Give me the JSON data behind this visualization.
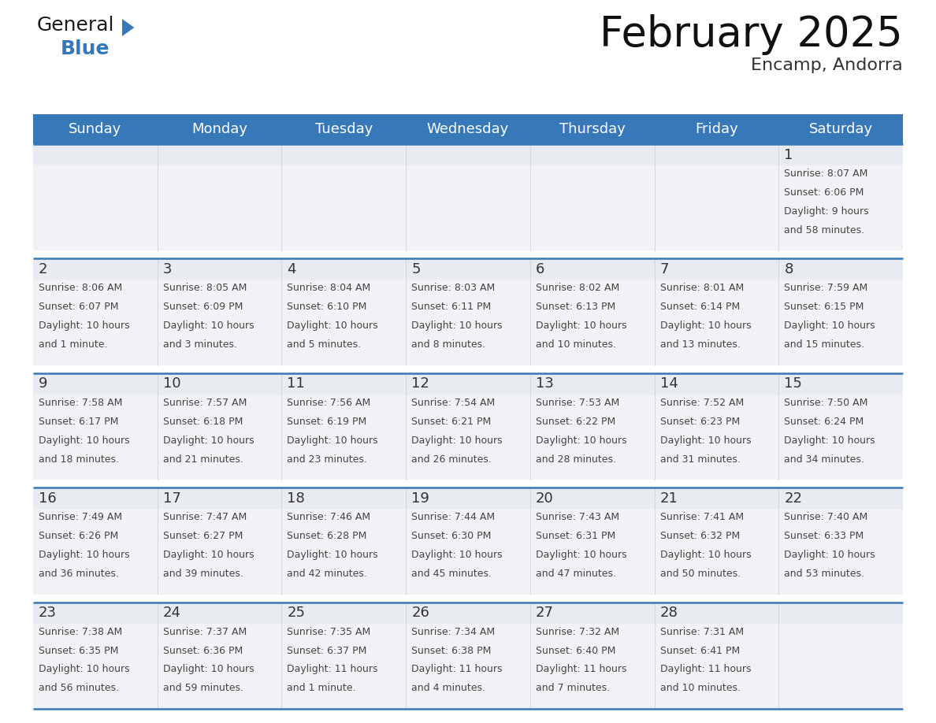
{
  "title": "February 2025",
  "subtitle": "Encamp, Andorra",
  "header_color": "#3778b8",
  "header_text_color": "#ffffff",
  "day_names": [
    "Sunday",
    "Monday",
    "Tuesday",
    "Wednesday",
    "Thursday",
    "Friday",
    "Saturday"
  ],
  "background_color": "#ffffff",
  "cell_bg": "#f0f2f5",
  "day_num_bg": "#e8ecf0",
  "divider_color": "#3778b8",
  "row_gap_color": "#ffffff",
  "title_color": "#111111",
  "subtitle_color": "#333333",
  "day_number_color": "#333333",
  "info_text_color": "#444444",
  "calendar": [
    [
      null,
      null,
      null,
      null,
      null,
      null,
      {
        "day": 1,
        "sunrise": "8:07 AM",
        "sunset": "6:06 PM",
        "daylight": "9 hours",
        "daylight2": "and 58 minutes."
      }
    ],
    [
      {
        "day": 2,
        "sunrise": "8:06 AM",
        "sunset": "6:07 PM",
        "daylight": "10 hours",
        "daylight2": "and 1 minute."
      },
      {
        "day": 3,
        "sunrise": "8:05 AM",
        "sunset": "6:09 PM",
        "daylight": "10 hours",
        "daylight2": "and 3 minutes."
      },
      {
        "day": 4,
        "sunrise": "8:04 AM",
        "sunset": "6:10 PM",
        "daylight": "10 hours",
        "daylight2": "and 5 minutes."
      },
      {
        "day": 5,
        "sunrise": "8:03 AM",
        "sunset": "6:11 PM",
        "daylight": "10 hours",
        "daylight2": "and 8 minutes."
      },
      {
        "day": 6,
        "sunrise": "8:02 AM",
        "sunset": "6:13 PM",
        "daylight": "10 hours",
        "daylight2": "and 10 minutes."
      },
      {
        "day": 7,
        "sunrise": "8:01 AM",
        "sunset": "6:14 PM",
        "daylight": "10 hours",
        "daylight2": "and 13 minutes."
      },
      {
        "day": 8,
        "sunrise": "7:59 AM",
        "sunset": "6:15 PM",
        "daylight": "10 hours",
        "daylight2": "and 15 minutes."
      }
    ],
    [
      {
        "day": 9,
        "sunrise": "7:58 AM",
        "sunset": "6:17 PM",
        "daylight": "10 hours",
        "daylight2": "and 18 minutes."
      },
      {
        "day": 10,
        "sunrise": "7:57 AM",
        "sunset": "6:18 PM",
        "daylight": "10 hours",
        "daylight2": "and 21 minutes."
      },
      {
        "day": 11,
        "sunrise": "7:56 AM",
        "sunset": "6:19 PM",
        "daylight": "10 hours",
        "daylight2": "and 23 minutes."
      },
      {
        "day": 12,
        "sunrise": "7:54 AM",
        "sunset": "6:21 PM",
        "daylight": "10 hours",
        "daylight2": "and 26 minutes."
      },
      {
        "day": 13,
        "sunrise": "7:53 AM",
        "sunset": "6:22 PM",
        "daylight": "10 hours",
        "daylight2": "and 28 minutes."
      },
      {
        "day": 14,
        "sunrise": "7:52 AM",
        "sunset": "6:23 PM",
        "daylight": "10 hours",
        "daylight2": "and 31 minutes."
      },
      {
        "day": 15,
        "sunrise": "7:50 AM",
        "sunset": "6:24 PM",
        "daylight": "10 hours",
        "daylight2": "and 34 minutes."
      }
    ],
    [
      {
        "day": 16,
        "sunrise": "7:49 AM",
        "sunset": "6:26 PM",
        "daylight": "10 hours",
        "daylight2": "and 36 minutes."
      },
      {
        "day": 17,
        "sunrise": "7:47 AM",
        "sunset": "6:27 PM",
        "daylight": "10 hours",
        "daylight2": "and 39 minutes."
      },
      {
        "day": 18,
        "sunrise": "7:46 AM",
        "sunset": "6:28 PM",
        "daylight": "10 hours",
        "daylight2": "and 42 minutes."
      },
      {
        "day": 19,
        "sunrise": "7:44 AM",
        "sunset": "6:30 PM",
        "daylight": "10 hours",
        "daylight2": "and 45 minutes."
      },
      {
        "day": 20,
        "sunrise": "7:43 AM",
        "sunset": "6:31 PM",
        "daylight": "10 hours",
        "daylight2": "and 47 minutes."
      },
      {
        "day": 21,
        "sunrise": "7:41 AM",
        "sunset": "6:32 PM",
        "daylight": "10 hours",
        "daylight2": "and 50 minutes."
      },
      {
        "day": 22,
        "sunrise": "7:40 AM",
        "sunset": "6:33 PM",
        "daylight": "10 hours",
        "daylight2": "and 53 minutes."
      }
    ],
    [
      {
        "day": 23,
        "sunrise": "7:38 AM",
        "sunset": "6:35 PM",
        "daylight": "10 hours",
        "daylight2": "and 56 minutes."
      },
      {
        "day": 24,
        "sunrise": "7:37 AM",
        "sunset": "6:36 PM",
        "daylight": "10 hours",
        "daylight2": "and 59 minutes."
      },
      {
        "day": 25,
        "sunrise": "7:35 AM",
        "sunset": "6:37 PM",
        "daylight": "11 hours",
        "daylight2": "and 1 minute."
      },
      {
        "day": 26,
        "sunrise": "7:34 AM",
        "sunset": "6:38 PM",
        "daylight": "11 hours",
        "daylight2": "and 4 minutes."
      },
      {
        "day": 27,
        "sunrise": "7:32 AM",
        "sunset": "6:40 PM",
        "daylight": "11 hours",
        "daylight2": "and 7 minutes."
      },
      {
        "day": 28,
        "sunrise": "7:31 AM",
        "sunset": "6:41 PM",
        "daylight": "11 hours",
        "daylight2": "and 10 minutes."
      },
      null
    ]
  ]
}
